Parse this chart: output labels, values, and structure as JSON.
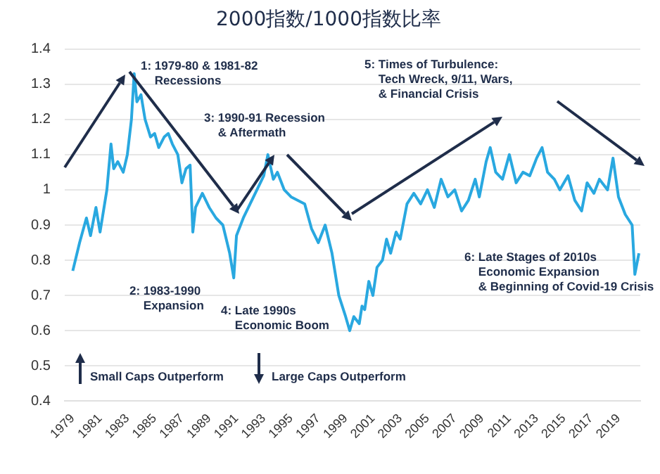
{
  "chart_data": {
    "type": "line",
    "title": "2000指数/1000指数比率",
    "x": [
      1979.0,
      1979.5,
      1980.0,
      1980.3,
      1980.7,
      1981.0,
      1981.5,
      1981.8,
      1982.0,
      1982.3,
      1982.7,
      1983.0,
      1983.3,
      1983.5,
      1983.7,
      1984.0,
      1984.3,
      1984.7,
      1985.0,
      1985.3,
      1985.7,
      1986.0,
      1986.3,
      1986.7,
      1987.0,
      1987.3,
      1987.6,
      1987.8,
      1988.0,
      1988.5,
      1989.0,
      1989.5,
      1990.0,
      1990.5,
      1990.8,
      1991.0,
      1991.5,
      1992.0,
      1992.5,
      1993.0,
      1993.3,
      1993.7,
      1994.0,
      1994.5,
      1995.0,
      1995.5,
      1996.0,
      1996.5,
      1997.0,
      1997.5,
      1998.0,
      1998.5,
      1999.0,
      1999.3,
      1999.6,
      2000.0,
      2000.2,
      2000.4,
      2000.7,
      2001.0,
      2001.3,
      2001.7,
      2002.0,
      2002.3,
      2002.7,
      2003.0,
      2003.5,
      2004.0,
      2004.5,
      2005.0,
      2005.5,
      2006.0,
      2006.5,
      2007.0,
      2007.5,
      2008.0,
      2008.5,
      2008.8,
      2009.3,
      2009.6,
      2010.0,
      2010.5,
      2011.0,
      2011.5,
      2012.0,
      2012.5,
      2013.0,
      2013.4,
      2013.8,
      2014.3,
      2014.7,
      2015.3,
      2015.8,
      2016.3,
      2016.7,
      2017.2,
      2017.6,
      2018.2,
      2018.6,
      2019.0,
      2019.5,
      2020.0,
      2020.2,
      2020.5
    ],
    "series": [
      {
        "color": "#29a8e0",
        "values": [
          0.77,
          0.85,
          0.92,
          0.87,
          0.95,
          0.88,
          1.0,
          1.13,
          1.06,
          1.08,
          1.05,
          1.1,
          1.2,
          1.33,
          1.25,
          1.27,
          1.2,
          1.15,
          1.16,
          1.12,
          1.15,
          1.16,
          1.13,
          1.1,
          1.02,
          1.06,
          1.07,
          0.88,
          0.95,
          0.99,
          0.95,
          0.92,
          0.9,
          0.82,
          0.75,
          0.87,
          0.92,
          0.96,
          1.0,
          1.04,
          1.1,
          1.03,
          1.05,
          1.0,
          0.98,
          0.97,
          0.96,
          0.89,
          0.85,
          0.9,
          0.82,
          0.7,
          0.64,
          0.6,
          0.64,
          0.62,
          0.67,
          0.66,
          0.74,
          0.7,
          0.78,
          0.8,
          0.86,
          0.82,
          0.88,
          0.86,
          0.96,
          0.99,
          0.96,
          1.0,
          0.95,
          1.03,
          0.98,
          1.0,
          0.94,
          0.97,
          1.03,
          0.98,
          1.08,
          1.12,
          1.05,
          1.03,
          1.1,
          1.02,
          1.05,
          1.04,
          1.09,
          1.12,
          1.05,
          1.03,
          1.0,
          1.04,
          0.97,
          0.94,
          1.02,
          0.99,
          1.03,
          1.0,
          1.09,
          0.98,
          0.93,
          0.9,
          0.76,
          0.82
        ]
      }
    ],
    "xlim": [
      1978.4,
      2020.6
    ],
    "xticks": [
      1979,
      1981,
      1983,
      1985,
      1987,
      1989,
      1991,
      1993,
      1995,
      1997,
      1999,
      2001,
      2003,
      2005,
      2007,
      2009,
      2011,
      2013,
      2015,
      2017,
      2019
    ],
    "ylim": [
      0.4,
      1.4
    ],
    "yticks": [
      0.4,
      0.5,
      0.6,
      0.7,
      0.8,
      0.9,
      1,
      1.1,
      1.2,
      1.3,
      1.4
    ],
    "grid": "y",
    "marker": "none",
    "line_style": "solid",
    "annotations": [
      "1: 1979-80 & 1981-82\nRecessions",
      "2: 1983-1990\nExpansion",
      "3: 1990-91 Recession\n& Aftermath",
      "4: Late 1990s\nEconomic Boom",
      "5: Times of Turbulence:\nTech Wreck, 9/11, Wars,\n& Financial Crisis",
      "6: Late Stages of 2010s\nEconomic Expansion\n& Beginning of Covid-19 Crisis",
      "Small Caps Outperform",
      "Large Caps Outperform"
    ]
  }
}
